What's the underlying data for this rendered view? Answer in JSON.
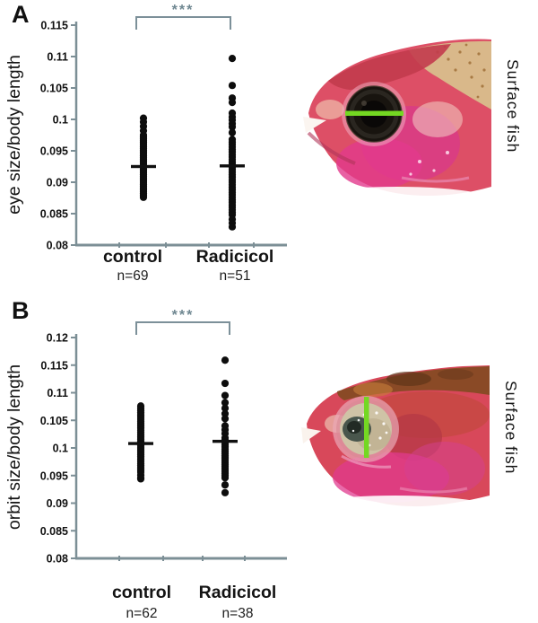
{
  "colors": {
    "axis": "#7c8f96",
    "bracket": "#7c9099",
    "significance": "#6f8791",
    "dots": "#0d0d0d",
    "mean_bar": "#101010",
    "text": "#151515",
    "measure_line_green": "#74d822"
  },
  "panels": [
    {
      "letter": "A",
      "photo_label": "Surface fish"
    },
    {
      "letter": "B",
      "photo_label": "Surface fish"
    }
  ],
  "chart_data": [
    {
      "type": "scatter",
      "panel": "A",
      "ylabel": "eye size/body length",
      "ylim": [
        0.08,
        0.115
      ],
      "grid": false,
      "significance": "***",
      "yticks": [
        {
          "value": 0.115,
          "label": "0.115"
        },
        {
          "value": 0.11,
          "label": "0.11"
        },
        {
          "value": 0.105,
          "label": "0.105"
        },
        {
          "value": 0.1,
          "label": "0.1"
        },
        {
          "value": 0.095,
          "label": "0.095"
        },
        {
          "value": 0.09,
          "label": "0.09"
        },
        {
          "value": 0.085,
          "label": "0.085"
        },
        {
          "value": 0.08,
          "label": "0.08"
        }
      ],
      "groups": [
        {
          "label": "control",
          "n_label": "n=69",
          "mean": 0.0925,
          "values": [
            0.1002,
            0.0996,
            0.0989,
            0.0982,
            0.0975,
            0.0972,
            0.0969,
            0.0966,
            0.0963,
            0.096,
            0.0957,
            0.0954,
            0.0951,
            0.0948,
            0.0945,
            0.0942,
            0.0939,
            0.0936,
            0.0933,
            0.093,
            0.0927,
            0.0924,
            0.0921,
            0.0918,
            0.0915,
            0.0912,
            0.0909,
            0.0906,
            0.0903,
            0.09,
            0.0897,
            0.0894,
            0.0891,
            0.0888,
            0.0885,
            0.0882,
            0.0879,
            0.0876
          ]
        },
        {
          "label": "Radicicol",
          "n_label": "n=51",
          "mean": 0.0926,
          "values": [
            0.1097,
            0.1054,
            0.1034,
            0.1027,
            0.101,
            0.1004,
            0.0999,
            0.0993,
            0.0988,
            0.0979,
            0.0968,
            0.0964,
            0.096,
            0.0956,
            0.0952,
            0.0948,
            0.0944,
            0.094,
            0.0936,
            0.0932,
            0.0928,
            0.0924,
            0.092,
            0.0916,
            0.0912,
            0.0908,
            0.0904,
            0.09,
            0.0896,
            0.0892,
            0.0888,
            0.0884,
            0.088,
            0.0876,
            0.0872,
            0.0868,
            0.0864,
            0.086,
            0.0856,
            0.0852,
            0.0848,
            0.0841,
            0.0835,
            0.0829
          ]
        }
      ]
    },
    {
      "type": "scatter",
      "panel": "B",
      "ylabel": "orbit size/body length",
      "ylim": [
        0.08,
        0.12
      ],
      "grid": false,
      "significance": "***",
      "yticks": [
        {
          "value": 0.12,
          "label": "0.12"
        },
        {
          "value": 0.115,
          "label": "0.115"
        },
        {
          "value": 0.11,
          "label": "0.11"
        },
        {
          "value": 0.105,
          "label": "0.105"
        },
        {
          "value": 0.1,
          "label": "0.1"
        },
        {
          "value": 0.095,
          "label": "0.095"
        },
        {
          "value": 0.09,
          "label": "0.09"
        },
        {
          "value": 0.085,
          "label": "0.085"
        },
        {
          "value": 0.08,
          "label": "0.08"
        }
      ],
      "groups": [
        {
          "label": "control",
          "n_label": "n=62",
          "mean": 0.1008,
          "values": [
            0.1076,
            0.1072,
            0.1068,
            0.1064,
            0.106,
            0.1056,
            0.1052,
            0.1048,
            0.1044,
            0.104,
            0.1036,
            0.1032,
            0.1028,
            0.1024,
            0.102,
            0.1016,
            0.1012,
            0.1008,
            0.1004,
            0.1,
            0.0996,
            0.0992,
            0.0988,
            0.0984,
            0.098,
            0.0976,
            0.0972,
            0.0968,
            0.0964,
            0.096,
            0.0956,
            0.0951,
            0.0946,
            0.0944
          ]
        },
        {
          "label": "Radicicol",
          "n_label": "n=38",
          "mean": 0.1012,
          "values": [
            0.1159,
            0.1117,
            0.1095,
            0.1082,
            0.1072,
            0.1062,
            0.1053,
            0.104,
            0.1033,
            0.1026,
            0.1018,
            0.1014,
            0.101,
            0.1006,
            0.1002,
            0.0998,
            0.0994,
            0.099,
            0.0986,
            0.0982,
            0.0978,
            0.0974,
            0.097,
            0.0966,
            0.0962,
            0.0958,
            0.0954,
            0.095,
            0.0946,
            0.0933,
            0.0919
          ]
        }
      ]
    }
  ]
}
